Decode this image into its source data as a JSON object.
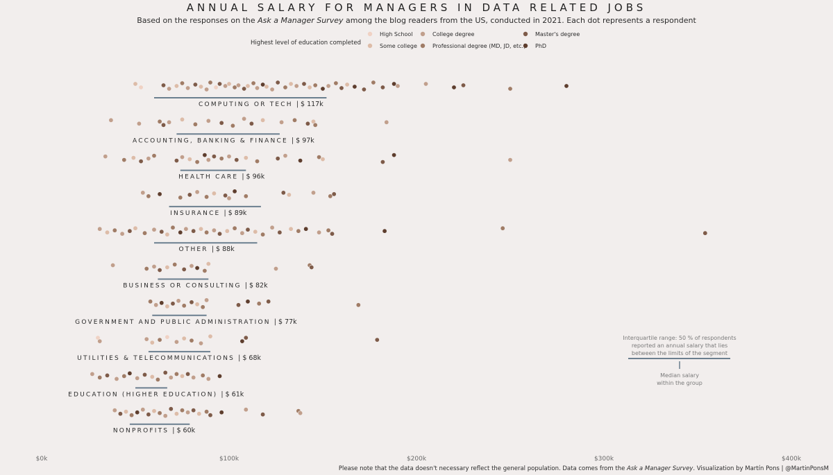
{
  "header": {
    "title": "ANNUAL SALARY FOR MANAGERS IN DATA RELATED JOBS",
    "subtitle_pre": "Based on the responses on the ",
    "subtitle_italic": "Ask a Manager Survey",
    "subtitle_post": " among the blog readers from the US, conducted in 2021. Each dot represents a respondent"
  },
  "legend": {
    "title": "Highest level of education completed",
    "items": [
      {
        "label": "High School",
        "color": "#f0d2c4"
      },
      {
        "label": "Some college",
        "color": "#ddbca8"
      },
      {
        "label": "College degree",
        "color": "#c19f8c"
      },
      {
        "label": "Professional degree (MD, JD, etc.)",
        "color": "#a07c66"
      },
      {
        "label": "Master's degree",
        "color": "#7e5b49"
      },
      {
        "label": "PhD",
        "color": "#5e3e2e"
      }
    ]
  },
  "annotation": {
    "iqr_lines": [
      "Interquartile range: 50 % of respondents",
      "reported an annual salary that lies",
      "between the limits of the segment"
    ],
    "median_lines": [
      "Median salary",
      "within the group"
    ]
  },
  "footnote": {
    "pre": "Please note that the data doesn't necessary reflect the general population. Data comes from the ",
    "italic": "Ask a Manager Survey",
    "post": ". Visualization by Martín Pons | @MartinPonsM"
  },
  "chart_data": {
    "type": "scatter",
    "x_axis": {
      "min": 0,
      "max": 400000,
      "ticks": [
        0,
        100000,
        200000,
        300000,
        400000
      ],
      "tick_labels": [
        "$0k",
        "$100k",
        "$200k",
        "$300k",
        "$400k"
      ]
    },
    "categories": [
      {
        "name": "COMPUTING OR TECH",
        "median_label": "$ 117k",
        "median": 117000,
        "q1": 60000,
        "q3": 152000,
        "points": [
          [
            50000,
            1
          ],
          [
            53000,
            0
          ],
          [
            65000,
            4
          ],
          [
            68000,
            2
          ],
          [
            72000,
            1
          ],
          [
            75000,
            3
          ],
          [
            78000,
            2
          ],
          [
            82000,
            4
          ],
          [
            85000,
            1
          ],
          [
            88000,
            2
          ],
          [
            90000,
            3
          ],
          [
            93000,
            0
          ],
          [
            95000,
            4
          ],
          [
            98000,
            2
          ],
          [
            100000,
            1
          ],
          [
            103000,
            3
          ],
          [
            105000,
            2
          ],
          [
            108000,
            4
          ],
          [
            110000,
            1
          ],
          [
            113000,
            3
          ],
          [
            115000,
            2
          ],
          [
            118000,
            5
          ],
          [
            120000,
            1
          ],
          [
            123000,
            2
          ],
          [
            126000,
            4
          ],
          [
            130000,
            3
          ],
          [
            133000,
            1
          ],
          [
            136000,
            2
          ],
          [
            140000,
            4
          ],
          [
            143000,
            1
          ],
          [
            146000,
            3
          ],
          [
            150000,
            5
          ],
          [
            153000,
            2
          ],
          [
            157000,
            3
          ],
          [
            160000,
            4
          ],
          [
            163000,
            1
          ],
          [
            167000,
            5
          ],
          [
            172000,
            4
          ],
          [
            177000,
            3
          ],
          [
            182000,
            4
          ],
          [
            188000,
            5
          ],
          [
            190000,
            2
          ],
          [
            205000,
            2
          ],
          [
            220000,
            5
          ],
          [
            225000,
            4
          ],
          [
            250000,
            3
          ],
          [
            280000,
            5
          ]
        ]
      },
      {
        "name": "ACCOUNTING, BANKING & FINANCE",
        "median_label": "$ 97k",
        "median": 97000,
        "q1": 72000,
        "q3": 127000,
        "points": [
          [
            37000,
            2
          ],
          [
            52000,
            2
          ],
          [
            63000,
            3
          ],
          [
            65000,
            4
          ],
          [
            68000,
            2
          ],
          [
            75000,
            1
          ],
          [
            82000,
            3
          ],
          [
            89000,
            2
          ],
          [
            96000,
            4
          ],
          [
            102000,
            3
          ],
          [
            108000,
            2
          ],
          [
            112000,
            4
          ],
          [
            118000,
            1
          ],
          [
            128000,
            2
          ],
          [
            135000,
            3
          ],
          [
            142000,
            4
          ],
          [
            145000,
            1
          ],
          [
            146000,
            3
          ],
          [
            184000,
            2
          ]
        ]
      },
      {
        "name": "HEALTH CARE",
        "median_label": "$ 96k",
        "median": 96000,
        "q1": 74000,
        "q3": 109000,
        "points": [
          [
            34000,
            2
          ],
          [
            44000,
            3
          ],
          [
            49000,
            1
          ],
          [
            53000,
            4
          ],
          [
            57000,
            2
          ],
          [
            60000,
            3
          ],
          [
            72000,
            4
          ],
          [
            75000,
            2
          ],
          [
            79000,
            1
          ],
          [
            83000,
            3
          ],
          [
            87000,
            5
          ],
          [
            89000,
            2
          ],
          [
            92000,
            4
          ],
          [
            96000,
            3
          ],
          [
            100000,
            2
          ],
          [
            104000,
            4
          ],
          [
            109000,
            1
          ],
          [
            115000,
            3
          ],
          [
            126000,
            4
          ],
          [
            130000,
            2
          ],
          [
            138000,
            5
          ],
          [
            148000,
            3
          ],
          [
            150000,
            1
          ],
          [
            182000,
            4
          ],
          [
            188000,
            5
          ],
          [
            250000,
            2
          ]
        ]
      },
      {
        "name": "INSURANCE",
        "median_label": "$ 89k",
        "median": 89000,
        "q1": 68000,
        "q3": 117000,
        "points": [
          [
            54000,
            2
          ],
          [
            57000,
            3
          ],
          [
            63000,
            5
          ],
          [
            74000,
            3
          ],
          [
            79000,
            4
          ],
          [
            83000,
            2
          ],
          [
            88000,
            3
          ],
          [
            92000,
            1
          ],
          [
            98000,
            4
          ],
          [
            100000,
            2
          ],
          [
            103000,
            5
          ],
          [
            109000,
            3
          ],
          [
            129000,
            4
          ],
          [
            132000,
            1
          ],
          [
            145000,
            2
          ],
          [
            154000,
            3
          ],
          [
            156000,
            4
          ]
        ]
      },
      {
        "name": "OTHER",
        "median_label": "$ 88k",
        "median": 88000,
        "q1": 60000,
        "q3": 115000,
        "points": [
          [
            31000,
            2
          ],
          [
            35000,
            1
          ],
          [
            39000,
            3
          ],
          [
            43000,
            2
          ],
          [
            47000,
            4
          ],
          [
            50000,
            1
          ],
          [
            55000,
            3
          ],
          [
            60000,
            2
          ],
          [
            64000,
            4
          ],
          [
            67000,
            1
          ],
          [
            70000,
            3
          ],
          [
            74000,
            5
          ],
          [
            77000,
            2
          ],
          [
            81000,
            4
          ],
          [
            85000,
            1
          ],
          [
            88000,
            3
          ],
          [
            92000,
            2
          ],
          [
            95000,
            4
          ],
          [
            99000,
            1
          ],
          [
            103000,
            3
          ],
          [
            107000,
            2
          ],
          [
            110000,
            4
          ],
          [
            114000,
            1
          ],
          [
            118000,
            3
          ],
          [
            123000,
            2
          ],
          [
            127000,
            4
          ],
          [
            133000,
            1
          ],
          [
            137000,
            3
          ],
          [
            141000,
            5
          ],
          [
            148000,
            2
          ],
          [
            153000,
            3
          ],
          [
            155000,
            4
          ],
          [
            183000,
            5
          ],
          [
            246000,
            3
          ],
          [
            354000,
            4
          ]
        ]
      },
      {
        "name": "BUSINESS OR CONSULTING",
        "median_label": "$ 82k",
        "median": 82000,
        "q1": 62000,
        "q3": 89000,
        "points": [
          [
            38000,
            2
          ],
          [
            56000,
            3
          ],
          [
            60000,
            2
          ],
          [
            63000,
            4
          ],
          [
            67000,
            1
          ],
          [
            71000,
            3
          ],
          [
            76000,
            4
          ],
          [
            80000,
            2
          ],
          [
            83000,
            5
          ],
          [
            87000,
            3
          ],
          [
            89000,
            1
          ],
          [
            125000,
            2
          ],
          [
            143000,
            3
          ],
          [
            144000,
            4
          ]
        ]
      },
      {
        "name": "GOVERNMENT AND PUBLIC ADMINISTRATION",
        "median_label": "$ 77k",
        "median": 77000,
        "q1": 59000,
        "q3": 88000,
        "points": [
          [
            58000,
            3
          ],
          [
            61000,
            2
          ],
          [
            64000,
            5
          ],
          [
            67000,
            1
          ],
          [
            70000,
            4
          ],
          [
            73000,
            2
          ],
          [
            76000,
            3
          ],
          [
            80000,
            4
          ],
          [
            83000,
            1
          ],
          [
            86000,
            3
          ],
          [
            88000,
            2
          ],
          [
            105000,
            4
          ],
          [
            110000,
            5
          ],
          [
            116000,
            3
          ],
          [
            121000,
            4
          ],
          [
            169000,
            3
          ]
        ]
      },
      {
        "name": "UTILITIES & TELECOMMUNICATIONS",
        "median_label": "$ 68k",
        "median": 68000,
        "q1": 57000,
        "q3": 90000,
        "points": [
          [
            30000,
            0
          ],
          [
            31000,
            2
          ],
          [
            56000,
            2
          ],
          [
            59000,
            1
          ],
          [
            63000,
            3
          ],
          [
            67000,
            0
          ],
          [
            72000,
            2
          ],
          [
            76000,
            1
          ],
          [
            80000,
            3
          ],
          [
            85000,
            2
          ],
          [
            90000,
            1
          ],
          [
            107000,
            5
          ],
          [
            109000,
            4
          ],
          [
            179000,
            4
          ]
        ]
      },
      {
        "name": "EDUCATION (HIGHER EDUCATION)",
        "median_label": "$ 61k",
        "median": 61000,
        "q1": 50000,
        "q3": 67000,
        "points": [
          [
            27000,
            2
          ],
          [
            31000,
            3
          ],
          [
            35000,
            4
          ],
          [
            40000,
            2
          ],
          [
            44000,
            3
          ],
          [
            47000,
            5
          ],
          [
            51000,
            2
          ],
          [
            55000,
            4
          ],
          [
            59000,
            1
          ],
          [
            62000,
            3
          ],
          [
            66000,
            4
          ],
          [
            69000,
            2
          ],
          [
            72000,
            3
          ],
          [
            75000,
            1
          ],
          [
            78000,
            4
          ],
          [
            81000,
            2
          ],
          [
            86000,
            3
          ],
          [
            89000,
            2
          ],
          [
            95000,
            5
          ]
        ]
      },
      {
        "name": "NONPROFITS",
        "median_label": "$ 60k",
        "median": 60000,
        "q1": 47000,
        "q3": 79000,
        "points": [
          [
            39000,
            2
          ],
          [
            42000,
            4
          ],
          [
            45000,
            1
          ],
          [
            48000,
            3
          ],
          [
            51000,
            5
          ],
          [
            54000,
            2
          ],
          [
            57000,
            4
          ],
          [
            60000,
            1
          ],
          [
            63000,
            3
          ],
          [
            66000,
            2
          ],
          [
            69000,
            4
          ],
          [
            72000,
            1
          ],
          [
            75000,
            3
          ],
          [
            78000,
            2
          ],
          [
            81000,
            4
          ],
          [
            84000,
            1
          ],
          [
            88000,
            3
          ],
          [
            90000,
            4
          ],
          [
            96000,
            5
          ],
          [
            109000,
            2
          ],
          [
            118000,
            4
          ],
          [
            137000,
            3
          ],
          [
            138000,
            2
          ]
        ]
      }
    ]
  }
}
